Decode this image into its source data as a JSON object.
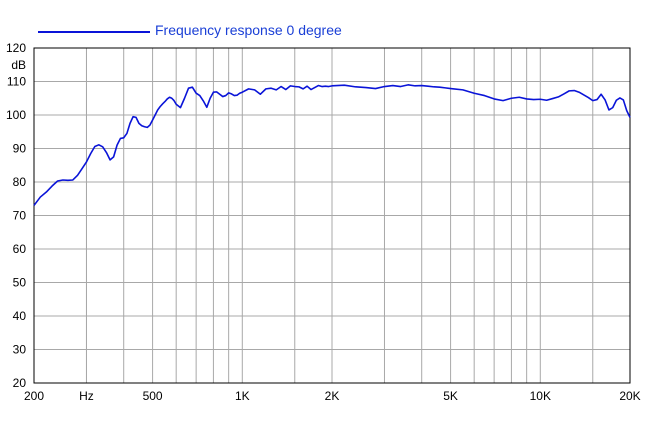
{
  "colors": {
    "series": "#0a14d8",
    "legend_text": "#1a3fd6",
    "grid": "#a8a8a8",
    "axis": "#000000"
  },
  "chart_data": {
    "type": "line",
    "title": "",
    "xlabel": "",
    "ylabel": "dB",
    "x_scale": "log",
    "xlim": [
      200,
      20000
    ],
    "ylim": [
      20,
      120
    ],
    "grid": true,
    "legend_position": "top-left",
    "x_ticks": [
      {
        "value": 200,
        "label": "200"
      },
      {
        "value": 300,
        "label": "Hz"
      },
      {
        "value": 500,
        "label": "500"
      },
      {
        "value": 1000,
        "label": "1K"
      },
      {
        "value": 2000,
        "label": "2K"
      },
      {
        "value": 5000,
        "label": "5K"
      },
      {
        "value": 10000,
        "label": "10K"
      },
      {
        "value": 20000,
        "label": "20K"
      }
    ],
    "x_minor_grid": [
      300,
      400,
      600,
      700,
      800,
      900,
      1500,
      3000,
      4000,
      6000,
      7000,
      8000,
      9000,
      15000
    ],
    "y_ticks": [
      20,
      30,
      40,
      50,
      60,
      70,
      80,
      90,
      100,
      110,
      120
    ],
    "series": [
      {
        "name": "Frequency response 0 degree",
        "x": [
          200,
          210,
          220,
          230,
          240,
          250,
          260,
          270,
          280,
          290,
          300,
          310,
          320,
          330,
          340,
          350,
          360,
          370,
          380,
          390,
          400,
          410,
          420,
          430,
          440,
          450,
          460,
          470,
          480,
          490,
          500,
          510,
          520,
          530,
          540,
          550,
          560,
          570,
          580,
          590,
          600,
          620,
          640,
          660,
          680,
          700,
          720,
          740,
          760,
          780,
          800,
          820,
          840,
          860,
          880,
          900,
          920,
          940,
          960,
          980,
          1000,
          1050,
          1100,
          1150,
          1200,
          1250,
          1300,
          1350,
          1400,
          1450,
          1500,
          1550,
          1600,
          1650,
          1700,
          1750,
          1800,
          1850,
          1900,
          1950,
          2000,
          2200,
          2400,
          2600,
          2800,
          3000,
          3200,
          3400,
          3600,
          3800,
          4000,
          4200,
          4400,
          4600,
          4800,
          5000,
          5500,
          6000,
          6500,
          7000,
          7500,
          8000,
          8500,
          9000,
          9500,
          10000,
          10500,
          11000,
          11500,
          12000,
          12500,
          13000,
          13500,
          14000,
          14500,
          15000,
          15500,
          16000,
          16500,
          17000,
          17500,
          18000,
          18500,
          19000,
          19500,
          20000
        ],
        "y": [
          73,
          75.5,
          77,
          78.8,
          80.3,
          80.6,
          80.5,
          80.6,
          82,
          84,
          86,
          88.5,
          90.6,
          91.1,
          90.5,
          88.8,
          86.6,
          87.5,
          91,
          93,
          93.2,
          94.5,
          97.5,
          99.5,
          99.3,
          97.5,
          96.8,
          96.5,
          96.3,
          97,
          98.5,
          100,
          101.5,
          102.5,
          103.3,
          104,
          104.8,
          105.3,
          105,
          104.3,
          103.2,
          102.2,
          105,
          108,
          108.3,
          106.5,
          105.8,
          104.2,
          102.3,
          105,
          106.8,
          106.9,
          106.2,
          105.5,
          105.8,
          106.6,
          106.3,
          105.8,
          105.9,
          106.5,
          106.8,
          107.8,
          107.5,
          106.2,
          107.8,
          108,
          107.5,
          108.5,
          107.6,
          108.7,
          108.5,
          108.4,
          107.8,
          108.6,
          107.6,
          108.2,
          108.8,
          108.5,
          108.6,
          108.5,
          108.7,
          108.9,
          108.4,
          108.2,
          107.9,
          108.5,
          108.8,
          108.5,
          109,
          108.7,
          108.8,
          108.6,
          108.4,
          108.3,
          108.1,
          107.9,
          107.5,
          106.5,
          105.8,
          104.8,
          104.3,
          105,
          105.3,
          104.8,
          104.6,
          104.7,
          104.4,
          104.9,
          105.4,
          106.3,
          107.2,
          107.3,
          106.8,
          106,
          105.2,
          104.3,
          104.6,
          106.2,
          104.5,
          101.5,
          102.2,
          104.4,
          105.1,
          104.5,
          101.3,
          99.3
        ]
      }
    ]
  }
}
